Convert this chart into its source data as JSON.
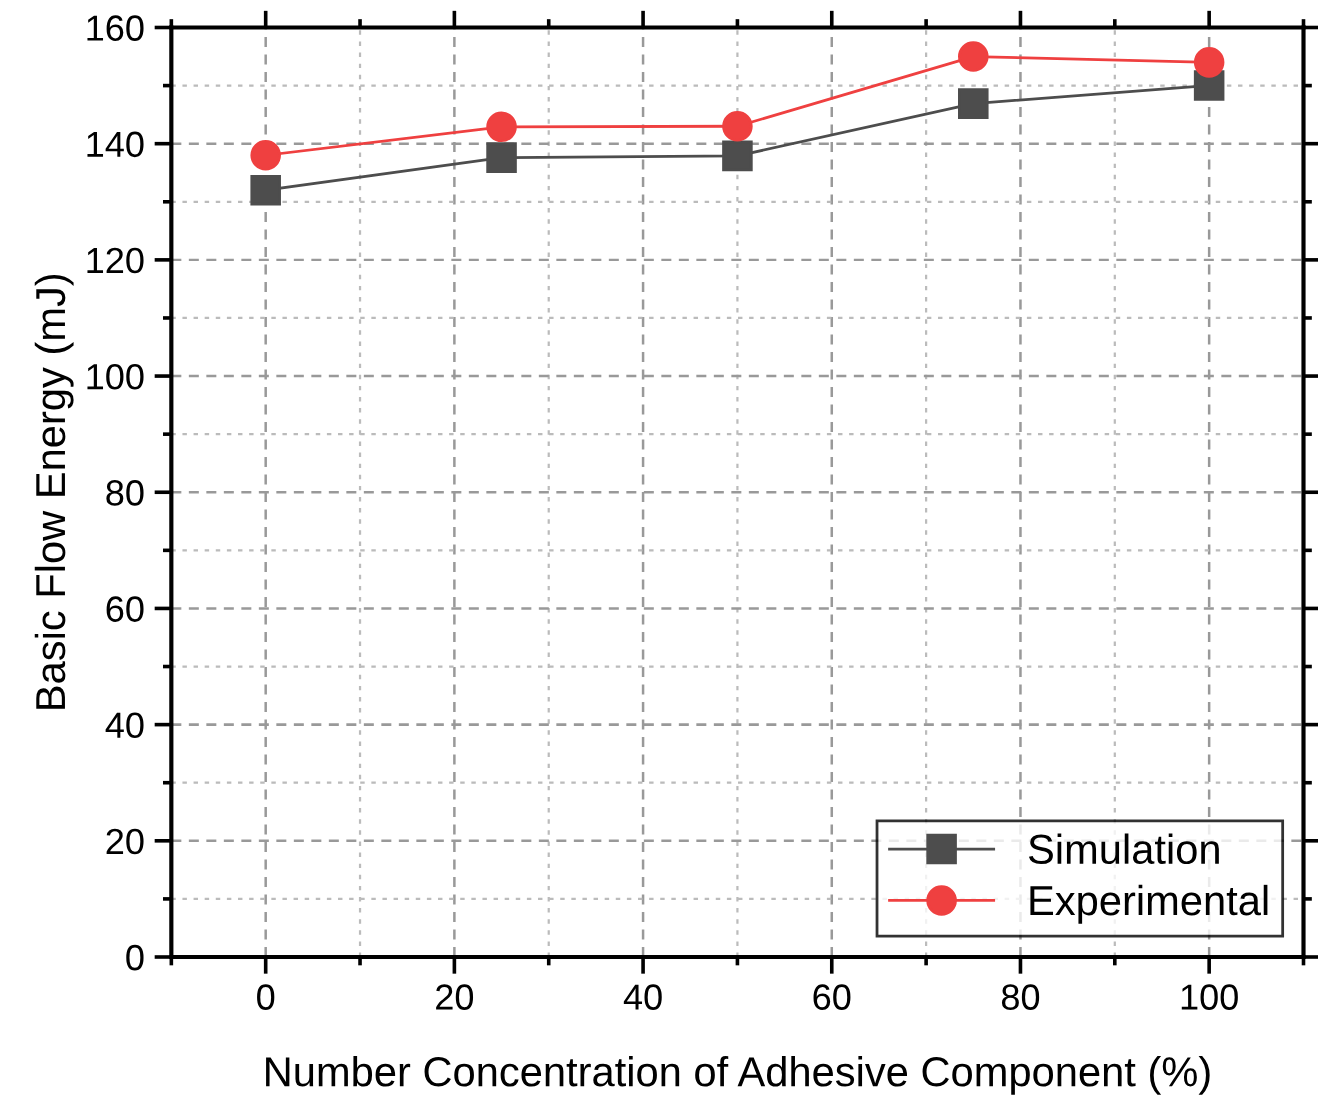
{
  "chart_data": {
    "type": "line",
    "xlabel": "Number Concentration of Adhesive Component (%)",
    "ylabel": "Basic Flow Energy (mJ)",
    "x": [
      0,
      25,
      50,
      75,
      100
    ],
    "series": [
      {
        "name": "Simulation",
        "color": "#4d4d4d",
        "values": [
          132,
          137.6,
          137.9,
          146.9,
          150
        ],
        "marker": "square"
      },
      {
        "name": "Experimental",
        "color": "#ef4040",
        "values": [
          138,
          142.9,
          143,
          155,
          154
        ],
        "marker": "circle"
      }
    ],
    "xlim": [
      -10,
      110
    ],
    "xticks": [
      0,
      20,
      40,
      60,
      80,
      100
    ],
    "ylim": [
      0,
      160
    ],
    "yticks": [
      0,
      20,
      40,
      60,
      80,
      100,
      120,
      140,
      160
    ],
    "grid": true,
    "legend": "bottom right",
    "line_style": "solid"
  }
}
